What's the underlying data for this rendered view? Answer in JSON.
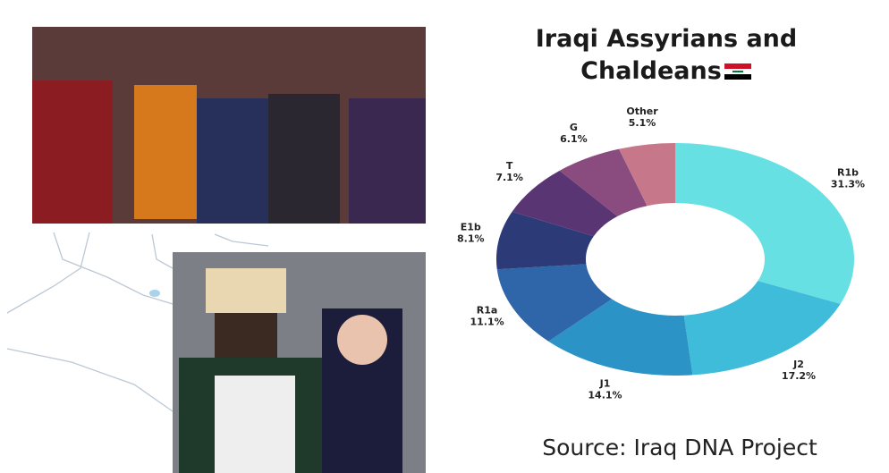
{
  "chart_data": {
    "type": "donut",
    "title": "Iraqi Assyrians and Chaldeans",
    "categories": [
      "R1b",
      "J2",
      "J1",
      "R1a",
      "E1b",
      "T",
      "G",
      "Other"
    ],
    "values": [
      31.3,
      17.2,
      14.1,
      11.1,
      8.1,
      7.1,
      6.1,
      5.1
    ],
    "value_labels": [
      "31.3%",
      "17.2%",
      "14.1%",
      "11.1%",
      "8.1%",
      "7.1%",
      "6.1%",
      "5.1%"
    ],
    "colors": [
      "#67e0e4",
      "#3fbcd9",
      "#2b93c6",
      "#2f65a9",
      "#2c3b78",
      "#5a3573",
      "#8a4c7e",
      "#c7778a"
    ],
    "source": "Source: Iraq DNA Project"
  }
}
